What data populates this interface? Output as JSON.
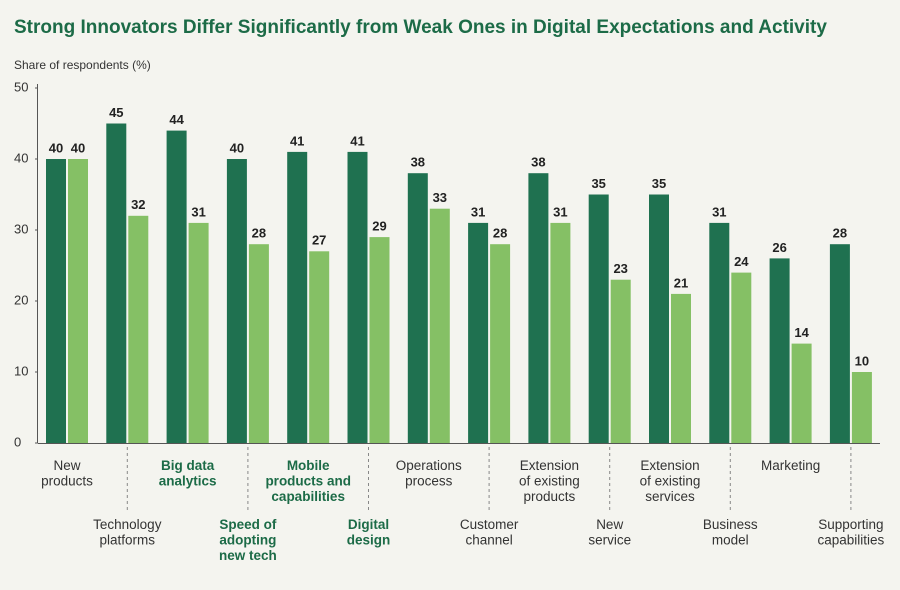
{
  "chart_data": {
    "type": "bar",
    "title": "Strong Innovators Differ Significantly from Weak Ones in Digital Expectations and Activity",
    "y_label": "Share of respondents (%)",
    "categories": [
      "New\nproducts",
      "Technology\nplatforms",
      "Big data\nanalytics",
      "Speed of\nadopting\nnew tech",
      "Mobile\nproducts and\ncapabilities",
      "Digital\ndesign",
      "Operations\nprocess",
      "Customer\nchannel",
      "Extension\nof existing\nproducts",
      "New\nservice",
      "Extension\nof existing\nservices",
      "Business\nmodel",
      "Marketing",
      "Supporting\ncapabilities"
    ],
    "highlight": [
      2,
      3,
      4,
      5
    ],
    "series": [
      {
        "color": "#1f7150",
        "values": [
          40,
          45,
          44,
          40,
          41,
          41,
          38,
          31,
          38,
          35,
          35,
          31,
          26,
          28
        ]
      },
      {
        "color": "#85c065",
        "values": [
          40,
          32,
          31,
          28,
          27,
          29,
          33,
          28,
          31,
          23,
          21,
          24,
          14,
          10
        ]
      }
    ],
    "ylim": [
      0,
      50
    ],
    "yticks": [
      0,
      10,
      20,
      30,
      40,
      50
    ]
  }
}
